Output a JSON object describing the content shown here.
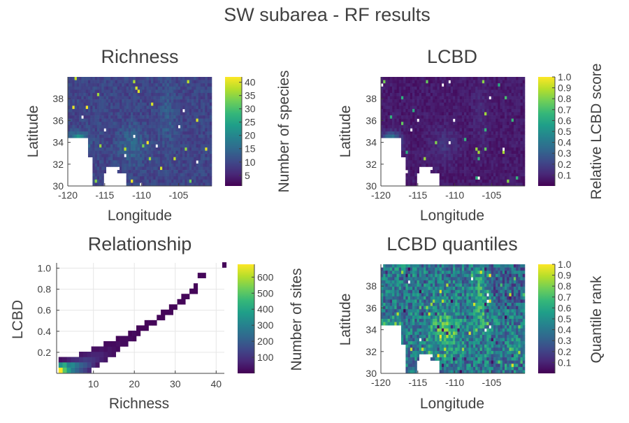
{
  "suptitle": "SW subarea - RF results",
  "colors": {
    "viridis": [
      "#440154",
      "#482878",
      "#3e4989",
      "#31688e",
      "#26828e",
      "#1f9e89",
      "#35b779",
      "#6ece58",
      "#b5de2b",
      "#fde725"
    ],
    "axis": "#404040",
    "grid": "#e6e6e6",
    "no_data": "#ffffff"
  },
  "chart_data": [
    {
      "id": "richness",
      "type": "heatmap",
      "title": "Richness",
      "xlabel": "Longitude",
      "ylabel": "Latitude",
      "xlim": [
        -120,
        -100.5
      ],
      "ylim": [
        30,
        40
      ],
      "xticks": [
        "-120",
        "-115",
        "-110",
        "-105"
      ],
      "yticks": [
        "30",
        "32",
        "34",
        "36",
        "38"
      ],
      "colorbar": {
        "label": "Number of species",
        "min": 1,
        "max": 42,
        "ticks": [
          "5",
          "10",
          "15",
          "20",
          "25",
          "30",
          "35",
          "40"
        ]
      },
      "grid_size": [
        64,
        34
      ],
      "pattern": "mostly 5-15 species; higher values (20-42) along the southern California coast near 34N,-119 and scattered in central Arizona",
      "value_range": [
        1,
        42
      ]
    },
    {
      "id": "lcbd",
      "type": "heatmap",
      "title": "LCBD",
      "xlabel": "Longitude",
      "ylabel": "Latitude",
      "xlim": [
        -120,
        -100.5
      ],
      "ylim": [
        30,
        40
      ],
      "xticks": [
        "-120",
        "-115",
        "-110",
        "-105"
      ],
      "yticks": [
        "30",
        "32",
        "34",
        "36",
        "38"
      ],
      "colorbar": {
        "label": "Relative LCBD score",
        "min": 0.0,
        "max": 1.0,
        "ticks": [
          "0.1",
          "0.2",
          "0.3",
          "0.4",
          "0.5",
          "0.6",
          "0.7",
          "0.8",
          "0.9",
          "1.0"
        ]
      },
      "grid_size": [
        64,
        34
      ],
      "pattern": "mostly below 0.15; highest (up to ~0.6) along southern California coast",
      "value_range": [
        0.0,
        1.0
      ]
    },
    {
      "id": "relationship",
      "type": "heatmap",
      "title": "Relationship",
      "xlabel": "Richness",
      "ylabel": "LCBD",
      "xlim": [
        1,
        42
      ],
      "ylim": [
        0,
        1.05
      ],
      "xticks": [
        "10",
        "20",
        "30",
        "40"
      ],
      "yticks": [
        "0.2",
        "0.4",
        "0.6",
        "0.8",
        "1.0"
      ],
      "grid": true,
      "colorbar": {
        "label": "Number of sites",
        "min": 0,
        "max": 680,
        "ticks": [
          "100",
          "200",
          "300",
          "400",
          "500",
          "600"
        ]
      },
      "bins": [
        {
          "richness": 2,
          "lcbd": 0.03,
          "sites": 680
        },
        {
          "richness": 2,
          "lcbd": 0.08,
          "sites": 350
        },
        {
          "richness": 2,
          "lcbd": 0.13,
          "sites": 30
        },
        {
          "richness": 3,
          "lcbd": 0.03,
          "sites": 500
        },
        {
          "richness": 3,
          "lcbd": 0.08,
          "sites": 420
        },
        {
          "richness": 3,
          "lcbd": 0.13,
          "sites": 40
        },
        {
          "richness": 4,
          "lcbd": 0.03,
          "sites": 380
        },
        {
          "richness": 4,
          "lcbd": 0.08,
          "sites": 300
        },
        {
          "richness": 4,
          "lcbd": 0.13,
          "sites": 60
        },
        {
          "richness": 5,
          "lcbd": 0.03,
          "sites": 280
        },
        {
          "richness": 5,
          "lcbd": 0.08,
          "sites": 320
        },
        {
          "richness": 5,
          "lcbd": 0.13,
          "sites": 80
        },
        {
          "richness": 6,
          "lcbd": 0.03,
          "sites": 220
        },
        {
          "richness": 6,
          "lcbd": 0.08,
          "sites": 260
        },
        {
          "richness": 6,
          "lcbd": 0.13,
          "sites": 90
        },
        {
          "richness": 7,
          "lcbd": 0.03,
          "sites": 170
        },
        {
          "richness": 7,
          "lcbd": 0.08,
          "sites": 210
        },
        {
          "richness": 7,
          "lcbd": 0.13,
          "sites": 100
        },
        {
          "richness": 7,
          "lcbd": 0.18,
          "sites": 40
        },
        {
          "richness": 8,
          "lcbd": 0.03,
          "sites": 130
        },
        {
          "richness": 8,
          "lcbd": 0.08,
          "sites": 180
        },
        {
          "richness": 8,
          "lcbd": 0.13,
          "sites": 120
        },
        {
          "richness": 8,
          "lcbd": 0.18,
          "sites": 50
        },
        {
          "richness": 9,
          "lcbd": 0.03,
          "sites": 80
        },
        {
          "richness": 9,
          "lcbd": 0.08,
          "sites": 140
        },
        {
          "richness": 9,
          "lcbd": 0.13,
          "sites": 110
        },
        {
          "richness": 9,
          "lcbd": 0.18,
          "sites": 60
        },
        {
          "richness": 10,
          "lcbd": 0.08,
          "sites": 90
        },
        {
          "richness": 10,
          "lcbd": 0.13,
          "sites": 100
        },
        {
          "richness": 10,
          "lcbd": 0.18,
          "sites": 70
        },
        {
          "richness": 10,
          "lcbd": 0.23,
          "sites": 30
        },
        {
          "richness": 11,
          "lcbd": 0.08,
          "sites": 40
        },
        {
          "richness": 11,
          "lcbd": 0.13,
          "sites": 80
        },
        {
          "richness": 11,
          "lcbd": 0.18,
          "sites": 70
        },
        {
          "richness": 11,
          "lcbd": 0.23,
          "sites": 30
        },
        {
          "richness": 12,
          "lcbd": 0.13,
          "sites": 60
        },
        {
          "richness": 12,
          "lcbd": 0.18,
          "sites": 70
        },
        {
          "richness": 12,
          "lcbd": 0.23,
          "sites": 40
        },
        {
          "richness": 13,
          "lcbd": 0.13,
          "sites": 40
        },
        {
          "richness": 13,
          "lcbd": 0.18,
          "sites": 50
        },
        {
          "richness": 13,
          "lcbd": 0.23,
          "sites": 30
        },
        {
          "richness": 13,
          "lcbd": 0.28,
          "sites": 20
        },
        {
          "richness": 14,
          "lcbd": 0.18,
          "sites": 40
        },
        {
          "richness": 14,
          "lcbd": 0.23,
          "sites": 40
        },
        {
          "richness": 14,
          "lcbd": 0.28,
          "sites": 20
        },
        {
          "richness": 15,
          "lcbd": 0.18,
          "sites": 30
        },
        {
          "richness": 15,
          "lcbd": 0.23,
          "sites": 30
        },
        {
          "richness": 15,
          "lcbd": 0.28,
          "sites": 20
        },
        {
          "richness": 16,
          "lcbd": 0.23,
          "sites": 20
        },
        {
          "richness": 16,
          "lcbd": 0.28,
          "sites": 30
        },
        {
          "richness": 16,
          "lcbd": 0.33,
          "sites": 10
        },
        {
          "richness": 17,
          "lcbd": 0.28,
          "sites": 20
        },
        {
          "richness": 17,
          "lcbd": 0.33,
          "sites": 20
        },
        {
          "richness": 18,
          "lcbd": 0.28,
          "sites": 20
        },
        {
          "richness": 18,
          "lcbd": 0.33,
          "sites": 20
        },
        {
          "richness": 19,
          "lcbd": 0.33,
          "sites": 20
        },
        {
          "richness": 19,
          "lcbd": 0.38,
          "sites": 10
        },
        {
          "richness": 20,
          "lcbd": 0.33,
          "sites": 10
        },
        {
          "richness": 20,
          "lcbd": 0.38,
          "sites": 20
        },
        {
          "richness": 21,
          "lcbd": 0.38,
          "sites": 10
        },
        {
          "richness": 21,
          "lcbd": 0.43,
          "sites": 10
        },
        {
          "richness": 22,
          "lcbd": 0.43,
          "sites": 10
        },
        {
          "richness": 23,
          "lcbd": 0.43,
          "sites": 10
        },
        {
          "richness": 23,
          "lcbd": 0.48,
          "sites": 10
        },
        {
          "richness": 24,
          "lcbd": 0.48,
          "sites": 10
        },
        {
          "richness": 25,
          "lcbd": 0.48,
          "sites": 10
        },
        {
          "richness": 26,
          "lcbd": 0.53,
          "sites": 10
        },
        {
          "richness": 27,
          "lcbd": 0.53,
          "sites": 10
        },
        {
          "richness": 27,
          "lcbd": 0.58,
          "sites": 10
        },
        {
          "richness": 28,
          "lcbd": 0.58,
          "sites": 10
        },
        {
          "richness": 29,
          "lcbd": 0.58,
          "sites": 10
        },
        {
          "richness": 29,
          "lcbd": 0.63,
          "sites": 10
        },
        {
          "richness": 30,
          "lcbd": 0.63,
          "sites": 10
        },
        {
          "richness": 31,
          "lcbd": 0.68,
          "sites": 10
        },
        {
          "richness": 32,
          "lcbd": 0.68,
          "sites": 10
        },
        {
          "richness": 32,
          "lcbd": 0.73,
          "sites": 10
        },
        {
          "richness": 33,
          "lcbd": 0.73,
          "sites": 10
        },
        {
          "richness": 34,
          "lcbd": 0.78,
          "sites": 10
        },
        {
          "richness": 35,
          "lcbd": 0.78,
          "sites": 10
        },
        {
          "richness": 35,
          "lcbd": 0.83,
          "sites": 10
        },
        {
          "richness": 36,
          "lcbd": 0.93,
          "sites": 10
        },
        {
          "richness": 37,
          "lcbd": 0.93,
          "sites": 10
        },
        {
          "richness": 42,
          "lcbd": 1.03,
          "sites": 10
        }
      ]
    },
    {
      "id": "lcbd-quantiles",
      "type": "heatmap",
      "title": "LCBD quantiles",
      "xlabel": "Longitude",
      "ylabel": "Latitude",
      "xlim": [
        -120,
        -100.5
      ],
      "ylim": [
        30,
        40
      ],
      "xticks": [
        "-120",
        "-115",
        "-110",
        "-105"
      ],
      "yticks": [
        "30",
        "32",
        "34",
        "36",
        "38"
      ],
      "colorbar": {
        "label": "Quantile rank",
        "min": 0.0,
        "max": 1.0,
        "ticks": [
          "0.1",
          "0.2",
          "0.3",
          "0.4",
          "0.5",
          "0.6",
          "0.7",
          "0.8",
          "0.9",
          "1.0"
        ]
      },
      "grid_size": [
        64,
        34
      ],
      "pattern": "high quantiles (0.8-1.0) along southern California coast and central Arizona; mid values elsewhere",
      "value_range": [
        0.0,
        1.0
      ]
    }
  ]
}
